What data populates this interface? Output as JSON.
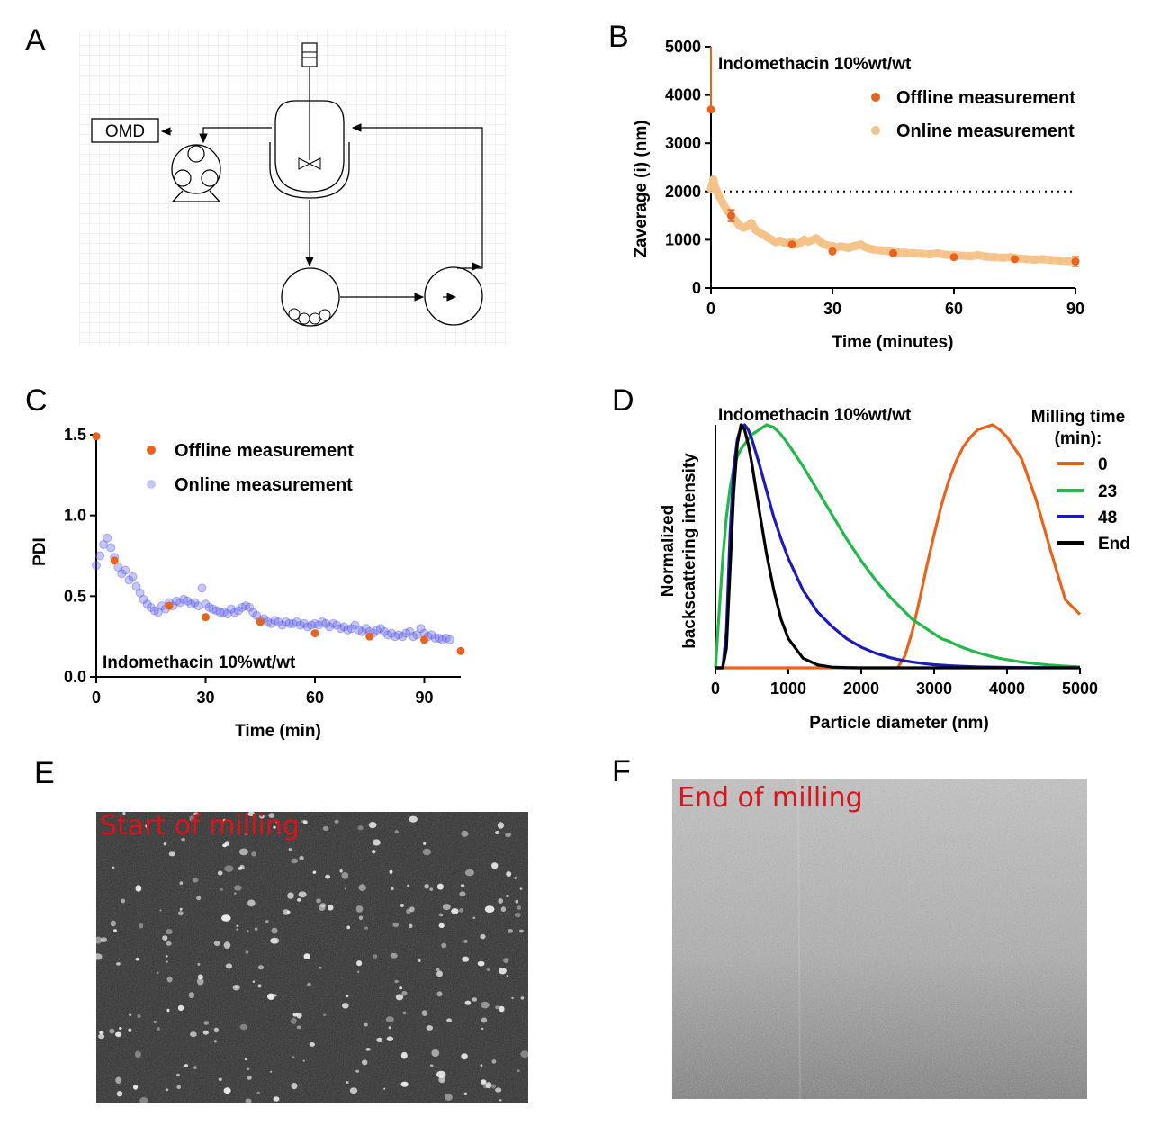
{
  "panels": {
    "a": {
      "letter": "A"
    },
    "b": {
      "letter": "B"
    },
    "c": {
      "letter": "C"
    },
    "d": {
      "letter": "D"
    },
    "e": {
      "letter": "E",
      "label": "Start of milling"
    },
    "f": {
      "letter": "F",
      "label": "End of milling"
    }
  },
  "diagram": {
    "omd_label": "OMD"
  },
  "chart_data": [
    {
      "id": "B",
      "type": "scatter",
      "annotation": "Indomethacin 10%wt/wt",
      "xlabel": "Time (minutes)",
      "ylabel": "Zaverage (i) (nm)",
      "xlim": [
        0,
        90
      ],
      "ylim": [
        0,
        5000
      ],
      "xticks": [
        0,
        30,
        60,
        90
      ],
      "yticks": [
        0,
        1000,
        2000,
        3000,
        4000,
        5000
      ],
      "reference_line": 2000,
      "legend_position": "top-right",
      "series": [
        {
          "name": "Offline measurement",
          "color": "#e8641e",
          "x": [
            0,
            5,
            20,
            30,
            45,
            60,
            75,
            90
          ],
          "y": [
            3700,
            1500,
            900,
            760,
            720,
            640,
            600,
            550
          ],
          "err": [
            0,
            120,
            0,
            0,
            0,
            0,
            0,
            100
          ]
        },
        {
          "name": "Online measurement",
          "color": "#f5c287",
          "x": [
            0,
            0.3,
            0.6,
            1,
            1.5,
            2,
            3,
            4,
            5,
            6,
            7,
            8,
            9,
            10,
            11,
            12,
            13,
            14,
            15,
            16,
            17,
            18,
            19,
            20,
            21,
            22,
            23,
            24,
            25,
            26,
            27,
            28,
            29,
            30,
            31,
            32,
            33,
            34,
            35,
            36,
            37,
            38,
            39,
            40,
            42,
            44,
            46,
            48,
            50,
            52,
            54,
            56,
            58,
            60,
            62,
            64,
            66,
            68,
            70,
            72,
            74,
            76,
            78,
            80,
            82,
            84,
            86,
            88,
            90
          ],
          "y": [
            2050,
            2150,
            2250,
            2100,
            2000,
            1900,
            1750,
            1600,
            1500,
            1400,
            1300,
            1250,
            1280,
            1350,
            1200,
            1150,
            1100,
            1050,
            1000,
            950,
            980,
            940,
            920,
            960,
            900,
            930,
            1000,
            960,
            990,
            1030,
            960,
            900,
            880,
            870,
            840,
            860,
            850,
            830,
            860,
            880,
            900,
            850,
            820,
            800,
            780,
            760,
            740,
            730,
            720,
            710,
            700,
            720,
            690,
            680,
            670,
            660,
            680,
            650,
            640,
            630,
            640,
            610,
            600,
            590,
            600,
            580,
            570,
            560,
            560
          ]
        }
      ]
    },
    {
      "id": "C",
      "type": "scatter",
      "annotation": "Indomethacin 10%wt/wt",
      "xlabel": "Time (min)",
      "ylabel": "PDI",
      "xlim": [
        0,
        100
      ],
      "ylim": [
        0,
        1.5
      ],
      "xticks": [
        0,
        30,
        60,
        90
      ],
      "yticks": [
        0.0,
        0.5,
        1.0,
        1.5
      ],
      "legend_position": "top-right",
      "series": [
        {
          "name": "Offline measurement",
          "color": "#e8641e",
          "x": [
            0,
            5,
            20,
            30,
            45,
            60,
            75,
            90,
            100
          ],
          "y": [
            1.49,
            0.72,
            0.44,
            0.37,
            0.34,
            0.27,
            0.25,
            0.23,
            0.16
          ]
        },
        {
          "name": "Online measurement",
          "color": "#5b5ee8",
          "x": [
            0,
            1,
            2,
            3,
            4,
            5,
            6,
            7,
            8,
            9,
            10,
            11,
            12,
            13,
            14,
            15,
            16,
            17,
            18,
            19,
            20,
            21,
            22,
            23,
            24,
            25,
            26,
            27,
            28,
            29,
            30,
            31,
            32,
            33,
            34,
            35,
            36,
            37,
            38,
            39,
            40,
            41,
            42,
            43,
            44,
            45,
            46,
            47,
            48,
            49,
            50,
            51,
            52,
            53,
            54,
            55,
            56,
            57,
            58,
            59,
            60,
            61,
            62,
            63,
            64,
            65,
            66,
            67,
            68,
            69,
            70,
            71,
            72,
            73,
            74,
            75,
            76,
            77,
            78,
            79,
            80,
            81,
            82,
            83,
            84,
            85,
            86,
            87,
            88,
            89,
            90,
            91,
            92,
            93,
            94,
            95,
            96,
            97
          ],
          "y": [
            0.69,
            0.75,
            0.82,
            0.86,
            0.8,
            0.74,
            0.68,
            0.64,
            0.66,
            0.6,
            0.62,
            0.56,
            0.52,
            0.48,
            0.45,
            0.43,
            0.41,
            0.4,
            0.44,
            0.42,
            0.46,
            0.44,
            0.47,
            0.46,
            0.48,
            0.47,
            0.45,
            0.46,
            0.44,
            0.55,
            0.45,
            0.43,
            0.42,
            0.41,
            0.4,
            0.4,
            0.39,
            0.42,
            0.4,
            0.41,
            0.43,
            0.44,
            0.43,
            0.4,
            0.38,
            0.35,
            0.36,
            0.34,
            0.33,
            0.35,
            0.34,
            0.32,
            0.34,
            0.33,
            0.33,
            0.34,
            0.32,
            0.33,
            0.31,
            0.32,
            0.33,
            0.32,
            0.34,
            0.33,
            0.31,
            0.33,
            0.32,
            0.3,
            0.31,
            0.29,
            0.3,
            0.32,
            0.29,
            0.28,
            0.3,
            0.28,
            0.27,
            0.29,
            0.3,
            0.28,
            0.26,
            0.27,
            0.25,
            0.26,
            0.25,
            0.27,
            0.28,
            0.25,
            0.26,
            0.3,
            0.27,
            0.25,
            0.26,
            0.24,
            0.24,
            0.23,
            0.24,
            0.23
          ]
        }
      ]
    },
    {
      "id": "D",
      "type": "line",
      "annotation": "Indomethacin 10%wt/wt",
      "xlabel": "Particle diameter (nm)",
      "ylabel": "Normalized backscattering intensity",
      "ylabel_lines": [
        "Normalized",
        "backscattering intensity"
      ],
      "xlim": [
        0,
        5000
      ],
      "ylim": [
        0,
        1
      ],
      "xticks": [
        0,
        1000,
        2000,
        3000,
        4000,
        5000
      ],
      "legend_title_lines": [
        "Milling time",
        "(min):"
      ],
      "legend_position": "top-right",
      "x": [
        0,
        100,
        150,
        200,
        250,
        300,
        350,
        400,
        450,
        500,
        600,
        700,
        800,
        900,
        1000,
        1200,
        1400,
        1600,
        1800,
        2000,
        2200,
        2400,
        2500,
        2600,
        2700,
        2800,
        2900,
        3000,
        3100,
        3200,
        3300,
        3400,
        3500,
        3600,
        3700,
        3800,
        3900,
        4000,
        4200,
        4400,
        4600,
        4800,
        5000
      ],
      "series": [
        {
          "name": "0",
          "color": "#e8641e",
          "y": [
            0,
            0,
            0,
            0,
            0,
            0,
            0,
            0,
            0,
            0,
            0,
            0,
            0,
            0,
            0,
            0,
            0,
            0,
            0,
            0,
            0,
            0,
            0.0,
            0.05,
            0.15,
            0.28,
            0.42,
            0.55,
            0.67,
            0.77,
            0.85,
            0.91,
            0.95,
            0.98,
            0.99,
            1.0,
            0.98,
            0.95,
            0.86,
            0.69,
            0.48,
            0.28,
            0.22
          ]
        },
        {
          "name": "23",
          "color": "#22b84a",
          "y": [
            0.0,
            0.45,
            0.62,
            0.74,
            0.82,
            0.87,
            0.9,
            0.92,
            0.94,
            0.96,
            0.98,
            1.0,
            0.99,
            0.96,
            0.92,
            0.83,
            0.73,
            0.63,
            0.53,
            0.44,
            0.36,
            0.29,
            0.26,
            0.23,
            0.2,
            0.18,
            0.16,
            0.14,
            0.12,
            0.11,
            0.095,
            0.083,
            0.072,
            0.062,
            0.054,
            0.046,
            0.039,
            0.034,
            0.024,
            0.017,
            0.011,
            0.007,
            0.004
          ]
        },
        {
          "name": "48",
          "color": "#1c1ab8",
          "y": [
            0,
            0.0,
            0.15,
            0.55,
            0.82,
            0.94,
            0.99,
            1.0,
            0.98,
            0.94,
            0.84,
            0.73,
            0.62,
            0.53,
            0.45,
            0.32,
            0.23,
            0.17,
            0.12,
            0.085,
            0.06,
            0.042,
            0.035,
            0.029,
            0.024,
            0.02,
            0.016,
            0.013,
            0.011,
            0.009,
            0.0075,
            0.006,
            0.005,
            0.004,
            0.0033,
            0.0027,
            0.0022,
            0.0018,
            0.0012,
            0.0008,
            0.0005,
            0.0003,
            0.0002
          ]
        },
        {
          "name": "End",
          "color": "#000000",
          "y": [
            0,
            0.0,
            0.08,
            0.4,
            0.72,
            0.92,
            1.0,
            0.98,
            0.92,
            0.84,
            0.65,
            0.47,
            0.32,
            0.2,
            0.12,
            0.04,
            0.012,
            0.003,
            0.001,
            0,
            0,
            0,
            0,
            0,
            0,
            0,
            0,
            0,
            0,
            0,
            0,
            0,
            0,
            0,
            0,
            0,
            0,
            0,
            0,
            0,
            0,
            0,
            0
          ]
        }
      ]
    }
  ]
}
